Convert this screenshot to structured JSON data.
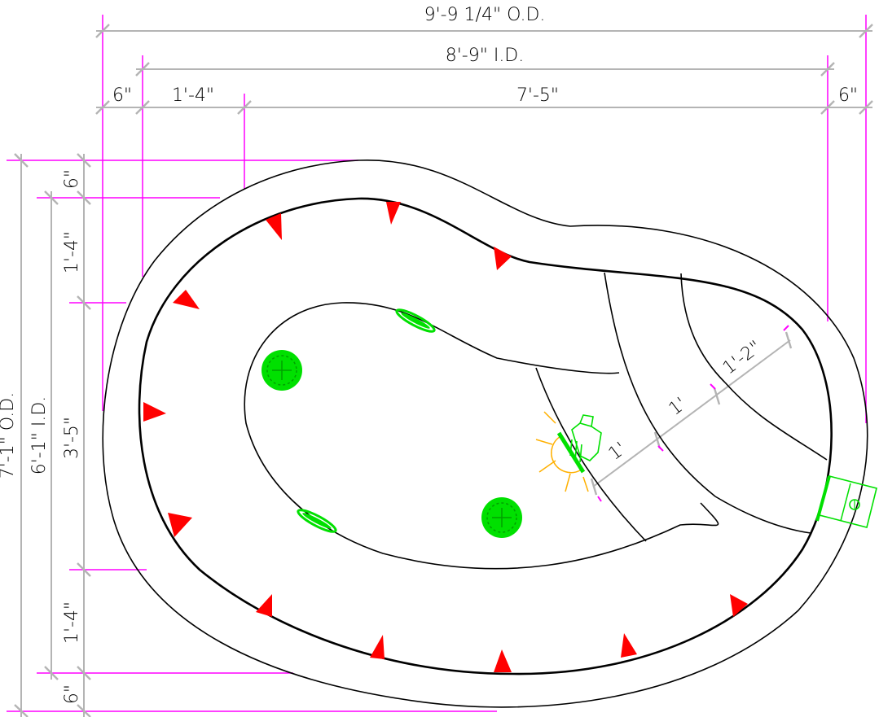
{
  "dimensions": {
    "top": {
      "overall_od": "9'-9 1/4\" O.D.",
      "overall_id": "8'-9\" I.D.",
      "wall_left": "6\"",
      "step_width": "1'-4\"",
      "main_span": "7'-5\"",
      "wall_right": "6\""
    },
    "left": {
      "overall_od": "7'-1\" O.D.",
      "overall_id": "6'-1\" I.D.",
      "wall_top": "6\"",
      "top_step": "1'-4\"",
      "middle": "3'-5\"",
      "bottom_step": "1'-4\"",
      "wall_bottom": "6\""
    },
    "steps": {
      "step_1": "1'",
      "step_2": "1'",
      "step_3": "1'-2\""
    }
  },
  "colors": {
    "extension_lines": "#ff00ff",
    "dimension_lines": "#b4b4b4",
    "jets": "#ff0000",
    "fixtures": "#00e000",
    "light": "#ffb000"
  },
  "symbols": {
    "jets": "red-triangle-jet-icons",
    "drains": "green-drain-icons",
    "skimmer": "skimmer-icon",
    "light": "pool-light-icon"
  }
}
